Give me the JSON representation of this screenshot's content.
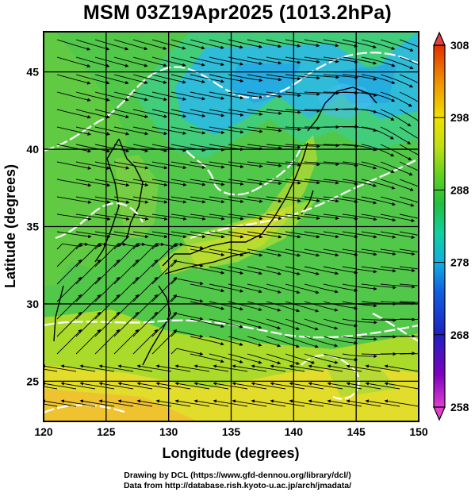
{
  "title": "MSM 03Z19Apr2025 (1013.2hPa)",
  "map": {
    "xlabel": "Longitude (degrees)",
    "ylabel": "Latitude  (degrees)",
    "lon_ticks": [
      120,
      125,
      130,
      135,
      140,
      145,
      150
    ],
    "lat_ticks": [
      25,
      30,
      35,
      40,
      45
    ],
    "lon_range": [
      120,
      150
    ],
    "lat_range": [
      22.4,
      47.6
    ]
  },
  "colorbar": {
    "ticks": [
      258,
      268,
      278,
      288,
      298,
      308
    ],
    "range": [
      258,
      308
    ],
    "colors": [
      "#e040d0",
      "#8000c0",
      "#2020c0",
      "#1060e0",
      "#10b0e0",
      "#10d0a0",
      "#20c040",
      "#60d020",
      "#c0e010",
      "#f0e000",
      "#f09000",
      "#e03000"
    ]
  },
  "credits": {
    "line1": "Drawing by DCL (https://www.gfd-dennou.org/library/dcl/)",
    "line2": "Data from http://database.rish.kyoto-u.ac.jp/arch/jmadata/"
  },
  "colors": {
    "sea_green": "#52c84a",
    "cold_blue": "#2ab8f0",
    "warm_yellow": "#e8dc2a",
    "warm_orange": "#f0c030",
    "contour": "#ffffff",
    "streamline": "#000000"
  }
}
